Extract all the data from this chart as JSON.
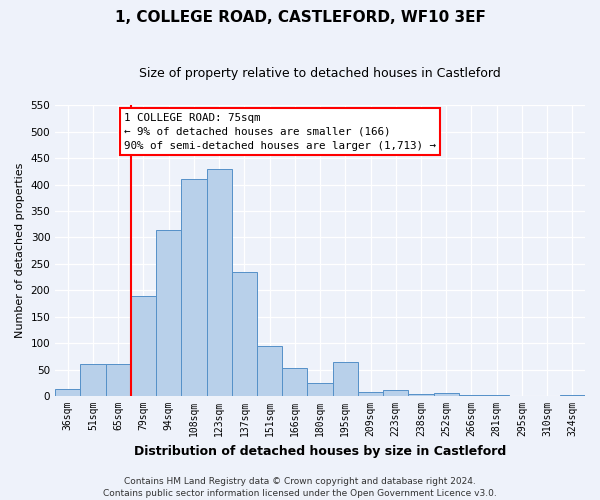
{
  "title": "1, COLLEGE ROAD, CASTLEFORD, WF10 3EF",
  "subtitle": "Size of property relative to detached houses in Castleford",
  "xlabel": "Distribution of detached houses by size in Castleford",
  "ylabel": "Number of detached properties",
  "bar_labels": [
    "36sqm",
    "51sqm",
    "65sqm",
    "79sqm",
    "94sqm",
    "108sqm",
    "123sqm",
    "137sqm",
    "151sqm",
    "166sqm",
    "180sqm",
    "195sqm",
    "209sqm",
    "223sqm",
    "238sqm",
    "252sqm",
    "266sqm",
    "281sqm",
    "295sqm",
    "310sqm",
    "324sqm"
  ],
  "bar_values": [
    13,
    60,
    60,
    190,
    315,
    410,
    430,
    235,
    95,
    53,
    25,
    65,
    8,
    12,
    3,
    5,
    2,
    2,
    1,
    1,
    2
  ],
  "bar_color": "#b8d0ea",
  "bar_edge_color": "#5590c8",
  "vline_color": "red",
  "vline_pos": 2.5,
  "annotation_title": "1 COLLEGE ROAD: 75sqm",
  "annotation_line1": "← 9% of detached houses are smaller (166)",
  "annotation_line2": "90% of semi-detached houses are larger (1,713) →",
  "annotation_box_color": "white",
  "annotation_box_edge": "red",
  "ylim": [
    0,
    550
  ],
  "yticks": [
    0,
    50,
    100,
    150,
    200,
    250,
    300,
    350,
    400,
    450,
    500,
    550
  ],
  "footer1": "Contains HM Land Registry data © Crown copyright and database right 2024.",
  "footer2": "Contains public sector information licensed under the Open Government Licence v3.0.",
  "bg_color": "#eef2fa",
  "plot_bg_color": "#eef2fa",
  "grid_color": "#ffffff",
  "title_fontsize": 11,
  "subtitle_fontsize": 9,
  "ylabel_fontsize": 8,
  "xlabel_fontsize": 9,
  "tick_fontsize": 7,
  "footer_fontsize": 6.5
}
